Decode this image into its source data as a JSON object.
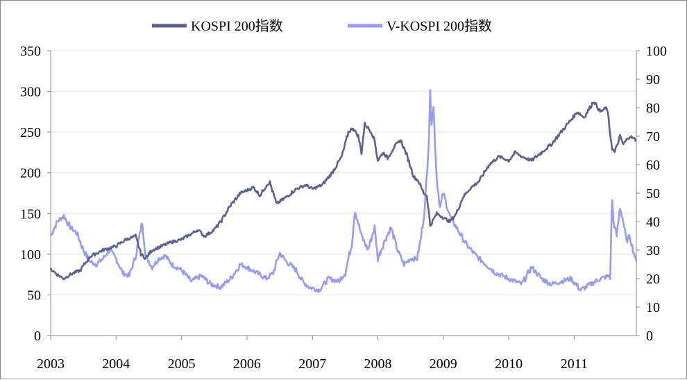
{
  "chart_data": {
    "type": "line",
    "title": "",
    "xlabel": "",
    "ylabel": "",
    "ylabel_right": "",
    "x_ticks": [
      "2003",
      "2004",
      "2005",
      "2006",
      "2007",
      "2008",
      "2009",
      "2010",
      "2011"
    ],
    "xlim": [
      2003.0,
      2011.95
    ],
    "ylim": [
      0,
      350
    ],
    "ylim_right": [
      0,
      100
    ],
    "y_ticks": [
      "0",
      "50",
      "100",
      "150",
      "200",
      "250",
      "300",
      "350"
    ],
    "y_ticks_right": [
      "0",
      "10",
      "20",
      "30",
      "40",
      "50",
      "60",
      "70",
      "80",
      "90",
      "100"
    ],
    "legend_position": "top-center",
    "grid": "horizontal",
    "series": [
      {
        "name": "KOSPI 200指数",
        "axis": "left",
        "color": "#5f5f8f",
        "x": [
          2003.0,
          2003.1,
          2003.2,
          2003.3,
          2003.45,
          2003.6,
          2003.8,
          2004.0,
          2004.15,
          2004.3,
          2004.38,
          2004.45,
          2004.55,
          2004.7,
          2004.85,
          2005.0,
          2005.15,
          2005.25,
          2005.35,
          2005.5,
          2005.6,
          2005.75,
          2005.9,
          2006.1,
          2006.2,
          2006.3,
          2006.35,
          2006.45,
          2006.6,
          2006.75,
          2006.9,
          2007.0,
          2007.15,
          2007.3,
          2007.45,
          2007.55,
          2007.62,
          2007.7,
          2007.75,
          2007.8,
          2007.9,
          2007.95,
          2008.0,
          2008.08,
          2008.15,
          2008.25,
          2008.35,
          2008.45,
          2008.55,
          2008.62,
          2008.7,
          2008.75,
          2008.8,
          2008.9,
          2009.0,
          2009.1,
          2009.2,
          2009.3,
          2009.4,
          2009.55,
          2009.7,
          2009.85,
          2010.0,
          2010.1,
          2010.2,
          2010.35,
          2010.5,
          2010.65,
          2010.8,
          2010.95,
          2011.05,
          2011.15,
          2011.3,
          2011.4,
          2011.5,
          2011.58,
          2011.62,
          2011.7,
          2011.75,
          2011.85,
          2011.95
        ],
        "values": [
          82,
          75,
          70,
          75,
          80,
          97,
          105,
          110,
          118,
          122,
          100,
          95,
          105,
          110,
          115,
          118,
          125,
          130,
          122,
          130,
          140,
          160,
          175,
          182,
          172,
          185,
          188,
          162,
          170,
          180,
          185,
          180,
          185,
          200,
          220,
          250,
          255,
          245,
          225,
          260,
          250,
          240,
          215,
          225,
          218,
          232,
          240,
          220,
          195,
          190,
          175,
          172,
          135,
          150,
          145,
          140,
          150,
          170,
          180,
          190,
          210,
          220,
          215,
          225,
          220,
          215,
          225,
          235,
          250,
          265,
          275,
          268,
          288,
          275,
          280,
          230,
          225,
          245,
          235,
          245,
          240
        ]
      },
      {
        "name": "V-KOSPI 200指数",
        "axis": "right",
        "color": "#9a9af5",
        "x": [
          2003.0,
          2003.1,
          2003.2,
          2003.3,
          2003.4,
          2003.5,
          2003.6,
          2003.7,
          2003.8,
          2003.9,
          2004.0,
          2004.1,
          2004.2,
          2004.3,
          2004.35,
          2004.4,
          2004.45,
          2004.55,
          2004.65,
          2004.75,
          2004.85,
          2005.0,
          2005.15,
          2005.3,
          2005.45,
          2005.6,
          2005.75,
          2005.9,
          2006.0,
          2006.15,
          2006.3,
          2006.4,
          2006.5,
          2006.6,
          2006.75,
          2006.85,
          2006.95,
          2007.1,
          2007.25,
          2007.4,
          2007.5,
          2007.6,
          2007.65,
          2007.75,
          2007.85,
          2007.95,
          2008.0,
          2008.1,
          2008.2,
          2008.3,
          2008.4,
          2008.5,
          2008.6,
          2008.65,
          2008.72,
          2008.78,
          2008.8,
          2008.82,
          2008.85,
          2008.9,
          2008.95,
          2009.0,
          2009.1,
          2009.2,
          2009.35,
          2009.5,
          2009.65,
          2009.8,
          2010.0,
          2010.2,
          2010.35,
          2010.5,
          2010.65,
          2010.8,
          2010.95,
          2011.1,
          2011.25,
          2011.4,
          2011.55,
          2011.58,
          2011.6,
          2011.65,
          2011.7,
          2011.75,
          2011.8,
          2011.85,
          2011.9,
          2011.95
        ],
        "values": [
          35,
          40,
          42,
          38,
          36,
          30,
          26,
          25,
          27,
          30,
          27,
          22,
          21,
          28,
          34,
          40,
          28,
          24,
          27,
          28,
          25,
          23,
          19,
          21,
          18,
          17,
          20,
          25,
          24,
          22,
          20,
          22,
          29,
          26,
          23,
          19,
          17,
          16,
          20,
          19,
          22,
          32,
          44,
          35,
          30,
          38,
          27,
          33,
          38,
          30,
          25,
          27,
          27,
          33,
          45,
          70,
          85,
          75,
          80,
          55,
          45,
          50,
          42,
          38,
          32,
          28,
          25,
          22,
          20,
          18,
          24,
          20,
          18,
          19,
          20,
          16,
          18,
          20,
          21,
          48,
          40,
          35,
          45,
          40,
          33,
          35,
          30,
          26
        ]
      }
    ]
  }
}
